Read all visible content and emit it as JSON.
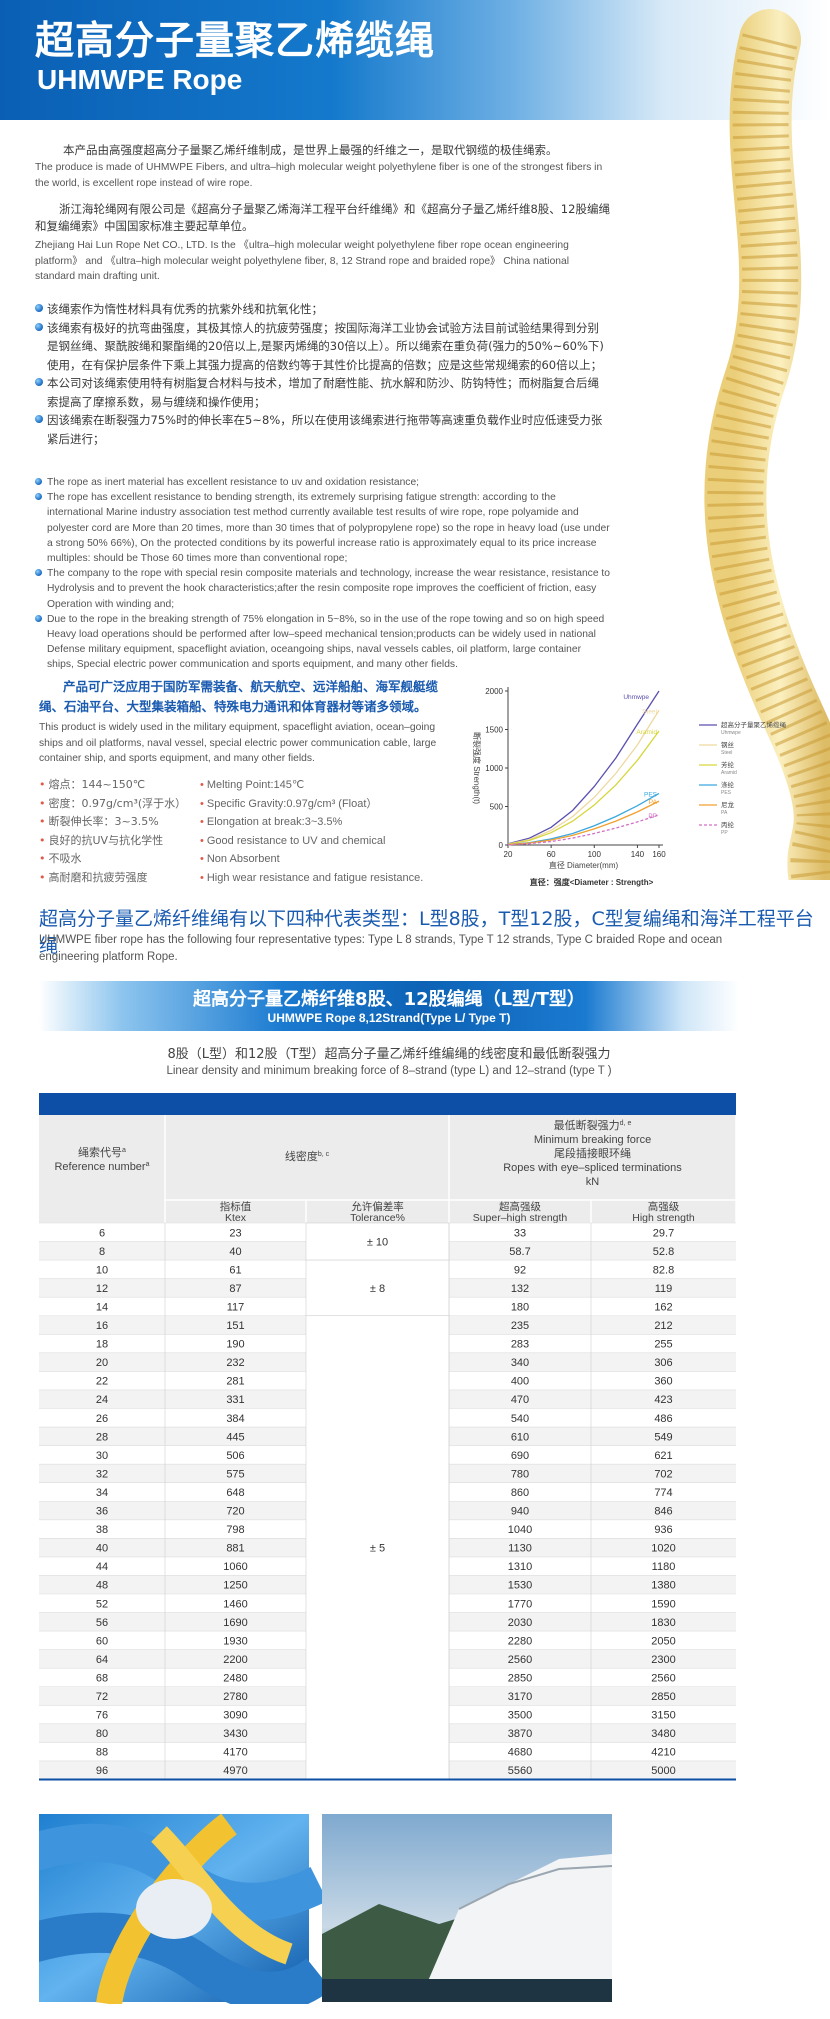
{
  "header": {
    "title_cn": "超高分子量聚乙烯缆绳",
    "title_en": "UHMWPE Rope"
  },
  "intro": {
    "cn": "本产品由高强度超高分子量聚乙烯纤维制成，是世界上最强的纤维之一，是取代钢缆的极佳绳索。",
    "en": "The produce is made of UHMWPE Fibers, and ultra–high molecular weight polyethylene fiber is one of the strongest fibers in the world, is excellent rope instead of wire rope."
  },
  "company": {
    "cn": "浙江海轮绳网有限公司是《超高分子量聚乙烯海洋工程平台纤维绳》和《超高分子量乙烯纤维8股、12股编绳和复编绳索》中国国家标准主要起草单位。",
    "en": "Zhejiang Hai Lun Rope Net CO., LTD. Is the 《ultra–high molecular weight polyethylene fiber rope ocean engineering platform》 and 《ultra–high molecular weight polyethylene fiber, 8, 12 Strand rope and  braided rope》 China national standard main drafting unit."
  },
  "features_cn": [
    "该绳索作为惰性材料具有优秀的抗紫外线和抗氧化性；",
    "该绳索有极好的抗弯曲强度，其极其惊人的抗疲劳强度；按国际海洋工业协会试验方法目前试验结果得到分别是钢丝绳、聚酰胺绳和聚酯绳的20倍以上,是聚丙烯绳的30倍以上）。所以绳索在重负荷(强力的50%~60%下)使用，在有保护层条件下乘上其强力提高的倍数约等于其性价比提高的倍数；应是这些常规绳索的60倍以上；",
    "本公司对该绳索使用特有树脂复合材料与技术，增加了耐磨性能、抗水解和防沙、防钩特性；而树脂复合后绳索提高了摩擦系数，易与缠绕和操作使用；",
    "因该绳索在断裂强力75%时的伸长率在5~8%，所以在使用该绳索进行拖带等高速重负载作业时应低速受力张紧后进行；"
  ],
  "features_en": [
    "The rope as inert material has excellent resistance to uv and oxidation resistance;",
    "The rope has excellent resistance to bending strength, its extremely surprising fatigue strength: according to the international Marine industry association test method currently available test results of wire rope, rope polyamide and polyester cord are More than 20 times, more than 30 times that of polypropylene rope) so the rope in heavy load (use under a strong 50% 66%), On the protected conditions by its powerful increase ratio is approximately equal to its price increase multiples: should be Those 60 times more than conventional rope;",
    "The company to the rope with special resin composite materials and technology, increase the wear resistance, resistance to Hydrolysis and to prevent the hook characteristics;after the resin composite rope improves the coefficient of friction, easy Operation with winding and;",
    "Due to the rope in the breaking strength of 75% elongation in 5~8%, so in the use of the rope towing and so on high speed Heavy load operations should be performed after low–speed mechanical tension;products can be widely used in national Defense military equipment, spaceflight aviation, oceangoing ships, naval vessels cables, oil platform, large container ships, Special electric power communication and sports equipment, and many other fields."
  ],
  "applications": {
    "cn": "产品可广泛应用于国防军需装备、航天航空、远洋船舶、海军舰艇缆绳、石油平台、大型集装箱船、特殊电力通讯和体育器材等诸多领域。",
    "en": "This product is widely used in the military equipment, spaceflight aviation, ocean–going ships and oil platforms, naval vessel,  special electric power communication cable, large container ship, and sports equipment, and many other fields."
  },
  "properties_cn": [
    "熔点：144~150℃",
    "密度：0.97g/cm³(浮于水）",
    "断裂伸长率：3~3.5%",
    "良好的抗UV与抗化学性",
    "不吸水",
    "高耐磨和抗疲劳强度"
  ],
  "properties_en": [
    "Melting Point:145℃",
    "Specific Gravity:0.97g/cm³ (Float）",
    "Elongation at break:3~3.5%",
    "Good resistance to UV and chemical",
    "Non Absorbent",
    "High wear resistance and fatigue resistance."
  ],
  "chart_data": {
    "type": "line",
    "y_label": "断裂强度 Strength(t)",
    "x_label": "直径 Diameter(mm)",
    "caption": "直径：强度<Diameter : Strength>",
    "x": [
      20,
      40,
      60,
      80,
      100,
      120,
      140,
      160
    ],
    "xlim": [
      20,
      160
    ],
    "xticks": [
      20,
      60,
      100,
      140,
      160
    ],
    "ylim": [
      0,
      2000
    ],
    "yticks": [
      0,
      500,
      1000,
      1500,
      2000
    ],
    "series": [
      {
        "name": "超高分子量聚乙烯缆绳",
        "name_en": "Uhmwpe",
        "color": "#5a4fb0",
        "values": [
          15,
          90,
          230,
          450,
          760,
          1130,
          1570,
          2000
        ]
      },
      {
        "name": "钢丝",
        "name_en": "Steel",
        "color": "#efd8a0",
        "values": [
          12,
          70,
          190,
          370,
          620,
          930,
          1300,
          1750
        ]
      },
      {
        "name": "芳纶",
        "name_en": "Aramid",
        "color": "#d6d63c",
        "values": [
          10,
          60,
          160,
          310,
          520,
          780,
          1100,
          1480
        ]
      },
      {
        "name": "涤纶",
        "name_en": "PES",
        "color": "#3aa7e0",
        "values": [
          5,
          30,
          80,
          150,
          250,
          370,
          510,
          670
        ]
      },
      {
        "name": "尼龙",
        "name_en": "PA",
        "color": "#f0a030",
        "values": [
          4,
          25,
          65,
          125,
          210,
          310,
          430,
          570
        ]
      },
      {
        "name": "丙纶",
        "name_en": "PP",
        "color": "#d070c8",
        "dashed": true,
        "values": [
          3,
          18,
          45,
          90,
          150,
          220,
          300,
          390
        ]
      }
    ]
  },
  "section": {
    "title_cn": "超高分子量乙烯纤维绳有以下四种代表类型：L型8股，T型12股，C型复编绳和海洋工程平台绳",
    "title_en": "UHMWPE fiber rope has the following four representative types: Type L 8 strands, Type T 12 strands, Type C braided Rope and ocean engineering platform Rope."
  },
  "banner": {
    "title_cn": "超高分子量乙烯纤维8股、12股编绳（L型/T型）",
    "title_en": "UHMWPE Rope 8,12Strand(Type L/ Type T)"
  },
  "table": {
    "title_cn": "8股（L型）和12股（T型）超高分子量乙烯纤维编绳的线密度和最低断裂强力",
    "title_en": "Linear density and minimum breaking force of 8–strand (type L) and 12–strand (type T )",
    "columns": {
      "reference": {
        "cn": "绳索代号",
        "en": "Reference number",
        "note": "a"
      },
      "linear_density": {
        "cn": "线密度",
        "note": "b, c"
      },
      "breaking_force": {
        "cn": "最低断裂强力",
        "note": "d, e",
        "en": "Minimum breaking force",
        "sub_cn": "尾段插接眼环绳",
        "sub_en": "Ropes with eye–spliced terminations",
        "unit": "kN"
      }
    },
    "subheaders": [
      {
        "cn": "指标值",
        "en": "Ktex"
      },
      {
        "cn": "允许偏差率",
        "en": "Tolerance%"
      },
      {
        "cn": "超高强级",
        "en": "Super–high strength"
      },
      {
        "cn": "高强级",
        "en": "High strength"
      }
    ],
    "rows": [
      [
        6,
        23,
        "± 10",
        33,
        29.7
      ],
      [
        8,
        40,
        null,
        58.7,
        52.8
      ],
      [
        10,
        61,
        "± 8",
        92,
        82.8
      ],
      [
        12,
        87,
        null,
        132,
        119
      ],
      [
        14,
        117,
        null,
        180,
        162
      ],
      [
        16,
        151,
        "± 5",
        235,
        212
      ],
      [
        18,
        190,
        null,
        283,
        255
      ],
      [
        20,
        232,
        null,
        340,
        306
      ],
      [
        22,
        281,
        null,
        400,
        360
      ],
      [
        24,
        331,
        null,
        470,
        423
      ],
      [
        26,
        384,
        null,
        540,
        486
      ],
      [
        28,
        445,
        null,
        610,
        549
      ],
      [
        30,
        506,
        null,
        690,
        621
      ],
      [
        32,
        575,
        null,
        780,
        702
      ],
      [
        34,
        648,
        null,
        860,
        774
      ],
      [
        36,
        720,
        null,
        940,
        846
      ],
      [
        38,
        798,
        null,
        1040,
        936
      ],
      [
        40,
        881,
        null,
        1130,
        1020
      ],
      [
        44,
        1060,
        null,
        1310,
        1180
      ],
      [
        48,
        1250,
        null,
        1530,
        1380
      ],
      [
        52,
        1460,
        null,
        1770,
        1590
      ],
      [
        56,
        1690,
        null,
        2030,
        1830
      ],
      [
        60,
        1930,
        null,
        2280,
        2050
      ],
      [
        64,
        2200,
        null,
        2560,
        2300
      ],
      [
        68,
        2480,
        null,
        2850,
        2560
      ],
      [
        72,
        2780,
        null,
        3170,
        2850
      ],
      [
        76,
        3090,
        null,
        3500,
        3150
      ],
      [
        80,
        3430,
        null,
        3870,
        3480
      ],
      [
        88,
        4170,
        null,
        4680,
        4210
      ],
      [
        96,
        4970,
        null,
        5560,
        5000
      ]
    ]
  }
}
